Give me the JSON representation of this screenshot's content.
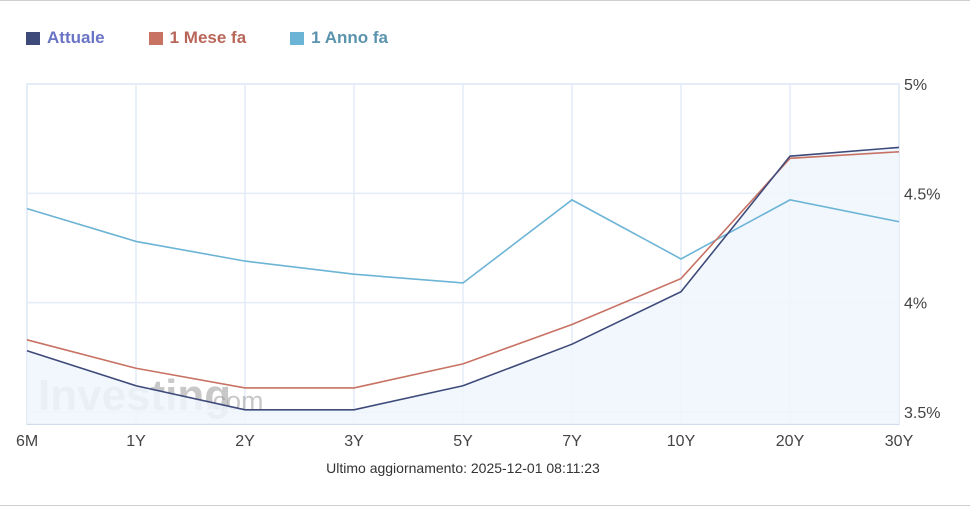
{
  "legend": {
    "items": [
      {
        "label": "Attuale",
        "swatch_color": "#3e4a7a",
        "text_color": "#6a74c4"
      },
      {
        "label": "1 Mese fa",
        "swatch_color": "#c87264",
        "text_color": "#b9665a"
      },
      {
        "label": "1 Anno fa",
        "swatch_color": "#6cb4d6",
        "text_color": "#5a93ad"
      }
    ]
  },
  "footer": {
    "last_update": "Ultimo aggiornamento: 2025-12-01 08:11:23"
  },
  "watermark": {
    "text_main": "Investing",
    "text_suffix": ".com"
  },
  "chart_data": {
    "type": "line",
    "title": "",
    "xlabel": "",
    "ylabel": "",
    "categories": [
      "6M",
      "1Y",
      "2Y",
      "3Y",
      "5Y",
      "7Y",
      "10Y",
      "20Y",
      "30Y"
    ],
    "series": [
      {
        "name": "Attuale",
        "color": "#3e4a7a",
        "fill": "#eef6fd",
        "values": [
          3.78,
          3.62,
          3.51,
          3.51,
          3.62,
          3.81,
          4.05,
          4.67,
          4.71
        ]
      },
      {
        "name": "1 Mese fa",
        "color": "#c87264",
        "values": [
          3.83,
          3.7,
          3.61,
          3.61,
          3.72,
          3.9,
          4.11,
          4.66,
          4.69
        ]
      },
      {
        "name": "1 Anno fa",
        "color": "#6cb4d6",
        "values": [
          4.43,
          4.28,
          4.19,
          4.13,
          4.09,
          4.47,
          4.2,
          4.47,
          4.37
        ]
      }
    ],
    "yticks": [
      3.5,
      4,
      4.5,
      5
    ],
    "ytick_labels": [
      "3.5%",
      "4%",
      "4.5%",
      "5%"
    ],
    "ylim": [
      3.445,
      5.0
    ],
    "grid": true,
    "y_axis_position": "right",
    "legend_position": "top-left"
  }
}
